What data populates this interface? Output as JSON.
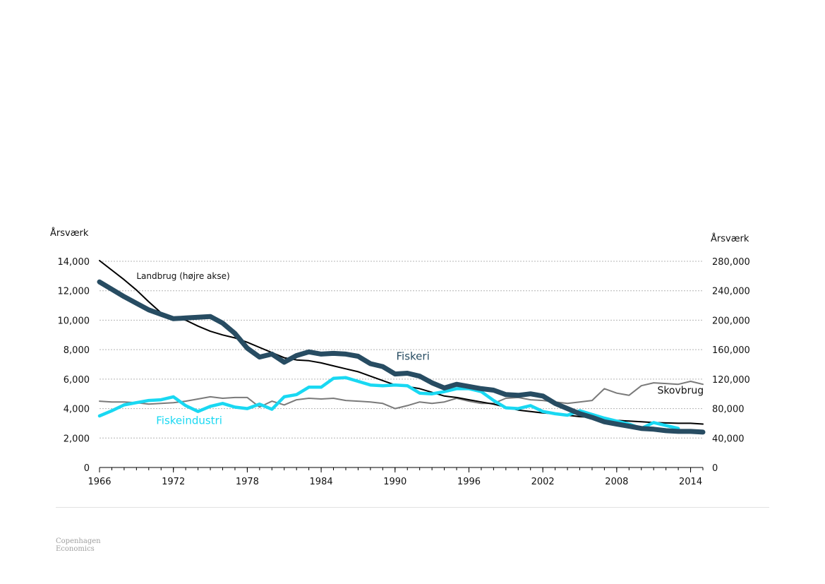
{
  "chart_data": {
    "type": "line",
    "left_axis_title": "Årsværk",
    "right_axis_title": "Årsværk",
    "ylim_left": [
      0,
      14000
    ],
    "ylim_right": [
      0,
      280000
    ],
    "xlim": [
      1966,
      2015
    ],
    "left_ticks": [
      {
        "value": 0,
        "label": "0"
      },
      {
        "value": 2000,
        "label": "2,000"
      },
      {
        "value": 4000,
        "label": "4,000"
      },
      {
        "value": 6000,
        "label": "6,000"
      },
      {
        "value": 8000,
        "label": "8,000"
      },
      {
        "value": 10000,
        "label": "10,000"
      },
      {
        "value": 12000,
        "label": "12,000"
      },
      {
        "value": 14000,
        "label": "14,000"
      }
    ],
    "right_ticks": [
      {
        "value": 0,
        "label": "0"
      },
      {
        "value": 40000,
        "label": "40,000"
      },
      {
        "value": 80000,
        "label": "80,000"
      },
      {
        "value": 120000,
        "label": "120,000"
      },
      {
        "value": 160000,
        "label": "160,000"
      },
      {
        "value": 200000,
        "label": "200,000"
      },
      {
        "value": 240000,
        "label": "240,000"
      },
      {
        "value": 280000,
        "label": "280,000"
      }
    ],
    "x_ticks": [
      {
        "value": 1966,
        "label": "1966"
      },
      {
        "value": 1972,
        "label": "1972"
      },
      {
        "value": 1978,
        "label": "1978"
      },
      {
        "value": 1984,
        "label": "1984"
      },
      {
        "value": 1990,
        "label": "1990"
      },
      {
        "value": 1996,
        "label": "1996"
      },
      {
        "value": 2002,
        "label": "2002"
      },
      {
        "value": 2008,
        "label": "2008"
      },
      {
        "value": 2014,
        "label": "2014"
      }
    ],
    "grid": true,
    "series": [
      {
        "name": "Skovbrug",
        "axis": "left",
        "color": "#7a7a7a",
        "width": 2,
        "x": [
          1966,
          1967,
          1968,
          1969,
          1970,
          1971,
          1972,
          1973,
          1974,
          1975,
          1976,
          1977,
          1978,
          1979,
          1980,
          1981,
          1982,
          1983,
          1984,
          1985,
          1986,
          1987,
          1988,
          1989,
          1990,
          1991,
          1992,
          1993,
          1994,
          1995,
          1996,
          1997,
          1998,
          1999,
          2000,
          2001,
          2002,
          2003,
          2004,
          2005,
          2006,
          2007,
          2008,
          2009,
          2010,
          2011,
          2012,
          2013,
          2014,
          2015
        ],
        "values": [
          4500,
          4450,
          4450,
          4400,
          4300,
          4350,
          4400,
          4500,
          4650,
          4800,
          4700,
          4750,
          4750,
          4100,
          4500,
          4250,
          4600,
          4700,
          4650,
          4700,
          4550,
          4500,
          4450,
          4350,
          4000,
          4200,
          4450,
          4350,
          4450,
          4700,
          4500,
          4350,
          4350,
          4700,
          4750,
          4600,
          4550,
          4450,
          4350,
          4450,
          4550,
          5350,
          5050,
          4900,
          5550,
          5750,
          5700,
          5650,
          5850,
          5650
        ]
      },
      {
        "name": "Landbrug (højre akse)",
        "axis": "right",
        "color": "#000000",
        "width": 2,
        "x": [
          1966,
          1967,
          1968,
          1969,
          1970,
          1971,
          1972,
          1973,
          1974,
          1975,
          1976,
          1977,
          1978,
          1979,
          1980,
          1981,
          1982,
          1983,
          1984,
          1985,
          1986,
          1987,
          1988,
          1989,
          1990,
          1991,
          1992,
          1993,
          1994,
          1995,
          1996,
          1997,
          1998,
          1999,
          2000,
          2001,
          2002,
          2003,
          2004,
          2005,
          2006,
          2007,
          2008,
          2009,
          2010,
          2011,
          2012,
          2013,
          2014,
          2015
        ],
        "values": [
          281000,
          268000,
          255000,
          241000,
          225000,
          210000,
          203000,
          200000,
          192000,
          185000,
          180000,
          176000,
          170000,
          163000,
          156000,
          149000,
          146000,
          145000,
          142000,
          138000,
          134000,
          130000,
          124000,
          118000,
          112000,
          110000,
          107000,
          102000,
          97000,
          95000,
          92000,
          89000,
          86000,
          82000,
          78000,
          76000,
          74000,
          73000,
          71000,
          69000,
          68000,
          66000,
          64000,
          63000,
          62000,
          61000,
          60500,
          60000,
          60000,
          59000
        ]
      },
      {
        "name": "Fiskeindustri",
        "axis": "left",
        "color": "#19d8f2",
        "width": 4.5,
        "x": [
          1966,
          1967,
          1968,
          1969,
          1970,
          1971,
          1972,
          1973,
          1974,
          1975,
          1976,
          1977,
          1978,
          1979,
          1980,
          1981,
          1982,
          1983,
          1984,
          1985,
          1986,
          1987,
          1988,
          1989,
          1990,
          1991,
          1992,
          1993,
          1994,
          1995,
          1996,
          1997,
          1998,
          1999,
          2000,
          2001,
          2002,
          2003,
          2004,
          2005,
          2006,
          2007,
          2008,
          2009,
          2010,
          2011,
          2012,
          2013
        ],
        "values": [
          3500,
          3850,
          4250,
          4400,
          4550,
          4600,
          4800,
          4200,
          3800,
          4150,
          4350,
          4100,
          4000,
          4300,
          3950,
          4800,
          4950,
          5450,
          5450,
          6050,
          6100,
          5850,
          5600,
          5550,
          5600,
          5550,
          5050,
          5000,
          5150,
          5350,
          5350,
          5150,
          4550,
          4050,
          4000,
          4200,
          3800,
          3650,
          3550,
          3850,
          3600,
          3350,
          3150,
          2950,
          2650,
          3050,
          2850,
          2650
        ]
      },
      {
        "name": "Fiskeri",
        "axis": "left",
        "color": "#274c62",
        "width": 7,
        "x": [
          1966,
          1967,
          1968,
          1969,
          1970,
          1971,
          1972,
          1973,
          1974,
          1975,
          1976,
          1977,
          1978,
          1979,
          1980,
          1981,
          1982,
          1983,
          1984,
          1985,
          1986,
          1987,
          1988,
          1989,
          1990,
          1991,
          1992,
          1993,
          1994,
          1995,
          1996,
          1997,
          1998,
          1999,
          2000,
          2001,
          2002,
          2003,
          2004,
          2005,
          2006,
          2007,
          2008,
          2009,
          2010,
          2011,
          2012,
          2013,
          2014,
          2015
        ],
        "values": [
          12600,
          12100,
          11600,
          11150,
          10700,
          10400,
          10100,
          10150,
          10200,
          10250,
          9800,
          9100,
          8100,
          7500,
          7700,
          7150,
          7600,
          7850,
          7700,
          7750,
          7700,
          7550,
          7050,
          6850,
          6350,
          6400,
          6200,
          5750,
          5400,
          5650,
          5500,
          5350,
          5250,
          4950,
          4900,
          5000,
          4850,
          4350,
          4000,
          3650,
          3400,
          3100,
          2950,
          2800,
          2650,
          2600,
          2500,
          2450,
          2450,
          2400
        ]
      }
    ],
    "annotations": [
      {
        "series": "Landbrug (højre akse)",
        "text": "Landbrug (højre akse)",
        "x": 1969.0,
        "y": 12800,
        "axis": "left",
        "size": 12,
        "color": "#111111"
      },
      {
        "series": "Fiskeri",
        "text": "Fiskeri",
        "x": 1990.1,
        "y": 7300,
        "axis": "left",
        "size": 15,
        "color": "#274c62"
      },
      {
        "series": "Skovbrug",
        "text": "Skovbrug",
        "x": 2011.3,
        "y": 5000,
        "axis": "left",
        "size": 14,
        "color": "#111111"
      },
      {
        "series": "Fiskeindustri",
        "text": "Fiskeindustri",
        "x": 1970.6,
        "y": 2950,
        "axis": "left",
        "size": 15,
        "color": "#19d8f2"
      }
    ]
  },
  "brand": {
    "line1": "Copenhagen",
    "line2": "Economics"
  }
}
